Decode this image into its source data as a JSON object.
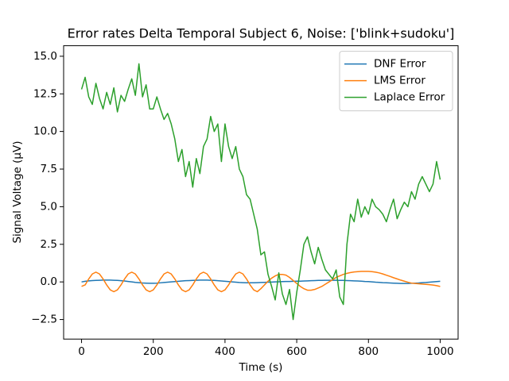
{
  "chart_data": {
    "type": "line",
    "title": "Error rates Delta Temporal Subject 6, Noise: ['blink+sudoku']",
    "xlabel": "Time (s)",
    "ylabel": "Signal Voltage (μV)",
    "xlim": [
      -50,
      1050
    ],
    "ylim": [
      -3.8,
      15.7
    ],
    "xticks": [
      0,
      200,
      400,
      600,
      800,
      1000
    ],
    "yticks": [
      {
        "value": -2.5,
        "label": "−2.5"
      },
      {
        "value": 0,
        "label": "0.0"
      },
      {
        "value": 2.5,
        "label": "2.5"
      },
      {
        "value": 5,
        "label": "5.0"
      },
      {
        "value": 7.5,
        "label": "7.5"
      },
      {
        "value": 10,
        "label": "10.0"
      },
      {
        "value": 12.5,
        "label": "12.5"
      },
      {
        "value": 15,
        "label": "15.0"
      }
    ],
    "grid": false,
    "legend": "upper right",
    "x": [
      0,
      10,
      20,
      30,
      40,
      50,
      60,
      70,
      80,
      90,
      100,
      110,
      120,
      130,
      140,
      150,
      160,
      170,
      180,
      190,
      200,
      210,
      220,
      230,
      240,
      250,
      260,
      270,
      280,
      290,
      300,
      310,
      320,
      330,
      340,
      350,
      360,
      370,
      380,
      390,
      400,
      410,
      420,
      430,
      440,
      450,
      460,
      470,
      480,
      490,
      500,
      510,
      520,
      530,
      540,
      550,
      560,
      570,
      580,
      590,
      600,
      610,
      620,
      630,
      640,
      650,
      660,
      670,
      680,
      690,
      700,
      710,
      720,
      730,
      740,
      750,
      760,
      770,
      780,
      790,
      800,
      810,
      820,
      830,
      840,
      850,
      860,
      870,
      880,
      890,
      900,
      910,
      920,
      930,
      940,
      950,
      960,
      970,
      980,
      990,
      1000
    ],
    "series": [
      {
        "name": "DNF Error",
        "color": "#1f77b4",
        "values": [
          0.0,
          0.04,
          0.07,
          0.09,
          0.1,
          0.11,
          0.12,
          0.12,
          0.12,
          0.11,
          0.1,
          0.08,
          0.06,
          0.03,
          0.0,
          -0.03,
          -0.05,
          -0.07,
          -0.08,
          -0.09,
          -0.09,
          -0.08,
          -0.06,
          -0.04,
          -0.02,
          0.0,
          0.02,
          0.04,
          0.06,
          0.08,
          0.09,
          0.1,
          0.11,
          0.12,
          0.12,
          0.12,
          0.11,
          0.1,
          0.08,
          0.06,
          0.04,
          0.02,
          0.0,
          -0.02,
          -0.04,
          -0.05,
          -0.06,
          -0.06,
          -0.06,
          -0.05,
          -0.04,
          -0.03,
          -0.02,
          -0.01,
          0.0,
          0.01,
          0.02,
          0.03,
          0.03,
          0.04,
          0.05,
          0.05,
          0.06,
          0.07,
          0.08,
          0.09,
          0.1,
          0.1,
          0.11,
          0.11,
          0.11,
          0.11,
          0.1,
          0.1,
          0.09,
          0.08,
          0.07,
          0.06,
          0.05,
          0.03,
          0.02,
          0.0,
          -0.02,
          -0.03,
          -0.05,
          -0.06,
          -0.07,
          -0.08,
          -0.09,
          -0.1,
          -0.1,
          -0.1,
          -0.09,
          -0.08,
          -0.07,
          -0.05,
          -0.04,
          -0.02,
          0.0,
          0.02,
          0.04
        ]
      },
      {
        "name": "LMS Error",
        "color": "#ff7f0e",
        "values": [
          -0.3,
          -0.2,
          0.2,
          0.53,
          0.65,
          0.53,
          0.2,
          -0.2,
          -0.53,
          -0.65,
          -0.53,
          -0.2,
          0.2,
          0.53,
          0.65,
          0.53,
          0.2,
          -0.2,
          -0.53,
          -0.65,
          -0.53,
          -0.2,
          0.2,
          0.53,
          0.65,
          0.53,
          0.2,
          -0.2,
          -0.53,
          -0.65,
          -0.53,
          -0.2,
          0.2,
          0.53,
          0.65,
          0.53,
          0.2,
          -0.2,
          -0.53,
          -0.65,
          -0.53,
          -0.2,
          0.2,
          0.53,
          0.65,
          0.53,
          0.2,
          -0.2,
          -0.53,
          -0.65,
          -0.45,
          -0.2,
          0.05,
          0.25,
          0.4,
          0.5,
          0.5,
          0.45,
          0.3,
          0.1,
          -0.1,
          -0.3,
          -0.45,
          -0.55,
          -0.55,
          -0.5,
          -0.4,
          -0.3,
          -0.15,
          0.0,
          0.15,
          0.3,
          0.4,
          0.5,
          0.57,
          0.62,
          0.66,
          0.68,
          0.7,
          0.7,
          0.7,
          0.68,
          0.65,
          0.6,
          0.53,
          0.45,
          0.37,
          0.28,
          0.2,
          0.12,
          0.05,
          -0.02,
          -0.08,
          -0.1,
          -0.12,
          -0.14,
          -0.16,
          -0.18,
          -0.21,
          -0.25,
          -0.3
        ]
      },
      {
        "name": "Laplace Error",
        "color": "#2ca02c",
        "values": [
          12.8,
          13.6,
          12.3,
          11.8,
          13.2,
          12.2,
          11.5,
          12.6,
          11.8,
          12.9,
          11.3,
          12.4,
          12.0,
          12.8,
          13.5,
          12.4,
          14.5,
          12.3,
          13.1,
          11.5,
          11.5,
          12.3,
          11.5,
          10.8,
          11.2,
          10.5,
          9.5,
          8.0,
          8.8,
          7.0,
          8.0,
          6.3,
          8.2,
          7.2,
          9.0,
          9.5,
          11.0,
          10.0,
          10.5,
          8.0,
          10.5,
          9.0,
          8.2,
          9.0,
          7.5,
          7.0,
          5.8,
          5.5,
          4.5,
          3.5,
          1.8,
          2.0,
          0.5,
          -0.3,
          -1.2,
          0.6,
          -0.8,
          -1.5,
          -0.5,
          -2.5,
          -0.7,
          0.8,
          2.5,
          3.0,
          2.0,
          1.2,
          2.3,
          1.5,
          0.8,
          0.5,
          0.2,
          0.8,
          -1.0,
          -1.5,
          2.5,
          4.5,
          4.0,
          5.5,
          4.3,
          5.0,
          4.5,
          5.5,
          5.0,
          4.8,
          4.5,
          4.0,
          4.8,
          5.5,
          4.2,
          4.8,
          5.3,
          5.0,
          6.0,
          5.5,
          6.5,
          7.0,
          6.5,
          6.0,
          6.5,
          8.0,
          6.8
        ]
      }
    ]
  }
}
